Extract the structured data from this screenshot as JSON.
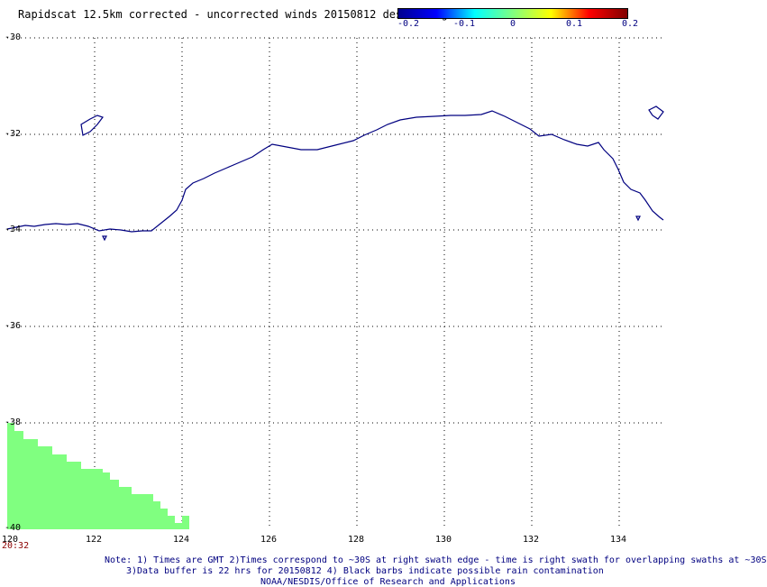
{
  "title": "Rapidscat 12.5km corrected - uncorrected winds 20150812 descending",
  "colorbar": {
    "labels": [
      "-0.2",
      "-0.1",
      "0",
      "0.1",
      "0.2"
    ],
    "min": -0.2,
    "max": 0.2
  },
  "map": {
    "lat_labels": [
      "-30",
      "-32",
      "-34",
      "-36",
      "-38",
      "-40"
    ],
    "lon_labels": [
      "120",
      "122",
      "124",
      "126",
      "128",
      "130",
      "132",
      "134"
    ],
    "lat_range": [
      -40,
      -30
    ],
    "lon_range": [
      120,
      135
    ],
    "coastline_color": "#000080",
    "gridline_style": "dotted",
    "swath_color": "#80ff80"
  },
  "time_label": "20:32",
  "notes": [
    "Note: 1) Times are GMT 2)Times correspond to ~30S at right swath edge - time is right swath for overlapping swaths at ~30S",
    "3)Data buffer is 22 hrs for 20150812 4) Black barbs indicate possible rain contamination",
    "NOAA/NESDIS/Office of Research and Applications"
  ]
}
